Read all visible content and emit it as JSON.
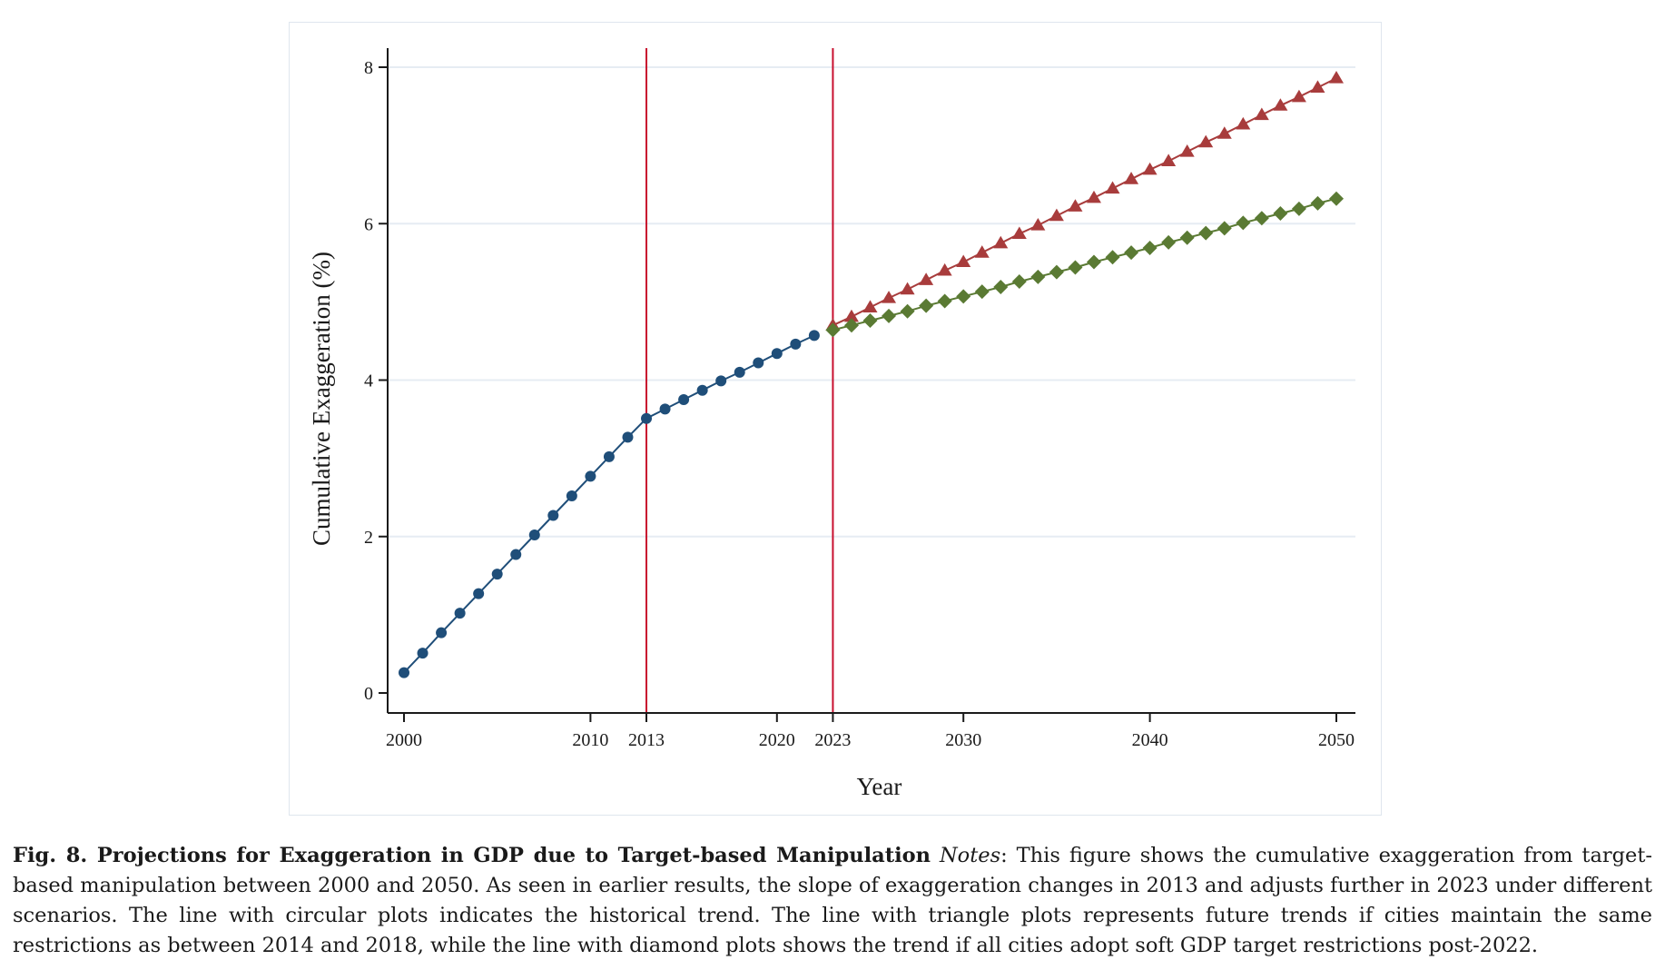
{
  "chart_data": {
    "type": "line",
    "xlabel": "Year",
    "ylabel": "Cumulative Exaggeration (%)",
    "xlim": [
      2000,
      2050
    ],
    "ylim": [
      0,
      8
    ],
    "xticks": [
      2000,
      2010,
      2013,
      2020,
      2023,
      2030,
      2040,
      2050
    ],
    "yticks": [
      0,
      2,
      4,
      6,
      8
    ],
    "grid": "horizontal",
    "legend": "none",
    "vlines": [
      2013,
      2023
    ],
    "series": [
      {
        "marker": "circle",
        "color": "#1f4e79",
        "x": [
          2000,
          2001,
          2002,
          2003,
          2004,
          2005,
          2006,
          2007,
          2008,
          2009,
          2010,
          2011,
          2012,
          2013,
          2014,
          2015,
          2016,
          2017,
          2018,
          2019,
          2020,
          2021,
          2022
        ],
        "y": [
          0.26,
          0.51,
          0.77,
          1.02,
          1.27,
          1.52,
          1.77,
          2.02,
          2.27,
          2.52,
          2.77,
          3.02,
          3.27,
          3.51,
          3.63,
          3.75,
          3.87,
          3.99,
          4.1,
          4.22,
          4.34,
          4.46,
          4.57
        ]
      },
      {
        "marker": "triangle",
        "color": "#a83c3c",
        "x": [
          2023,
          2024,
          2025,
          2026,
          2027,
          2028,
          2029,
          2030,
          2031,
          2032,
          2033,
          2034,
          2035,
          2036,
          2037,
          2038,
          2039,
          2040,
          2041,
          2042,
          2043,
          2044,
          2045,
          2046,
          2047,
          2048,
          2049,
          2050
        ],
        "y": [
          4.7,
          4.81,
          4.93,
          5.05,
          5.16,
          5.28,
          5.4,
          5.51,
          5.63,
          5.75,
          5.87,
          5.98,
          6.1,
          6.22,
          6.33,
          6.45,
          6.57,
          6.69,
          6.8,
          6.92,
          7.04,
          7.15,
          7.27,
          7.39,
          7.51,
          7.62,
          7.74,
          7.86
        ]
      },
      {
        "marker": "diamond",
        "color": "#5a7a33",
        "x": [
          2023,
          2024,
          2025,
          2026,
          2027,
          2028,
          2029,
          2030,
          2031,
          2032,
          2033,
          2034,
          2035,
          2036,
          2037,
          2038,
          2039,
          2040,
          2041,
          2042,
          2043,
          2044,
          2045,
          2046,
          2047,
          2048,
          2049,
          2050
        ],
        "y": [
          4.64,
          4.7,
          4.76,
          4.82,
          4.88,
          4.95,
          5.01,
          5.07,
          5.13,
          5.19,
          5.26,
          5.32,
          5.38,
          5.44,
          5.51,
          5.57,
          5.63,
          5.69,
          5.76,
          5.82,
          5.88,
          5.94,
          6.01,
          6.07,
          6.13,
          6.19,
          6.26,
          6.32
        ]
      }
    ]
  },
  "colors": {
    "vline": "#c8102e",
    "grid": "#e6ecf3",
    "axis": "#1a1a1a"
  },
  "caption": {
    "label": "Fig. 8. Projections for Exaggeration in GDP due to Target-based Manipulation",
    "notes_label": "Notes",
    "text": ": This figure shows the cumulative exaggeration from target-based manipulation between 2000 and 2050. As seen in earlier results, the slope of exaggeration changes in 2013 and adjusts further in 2023 under different scenarios. The line with circular plots indicates the historical trend. The line with triangle plots represents future trends if cities maintain the same restrictions as between 2014 and 2018, while the line with diamond plots shows the trend if all cities adopt soft GDP target restrictions post-2022."
  }
}
